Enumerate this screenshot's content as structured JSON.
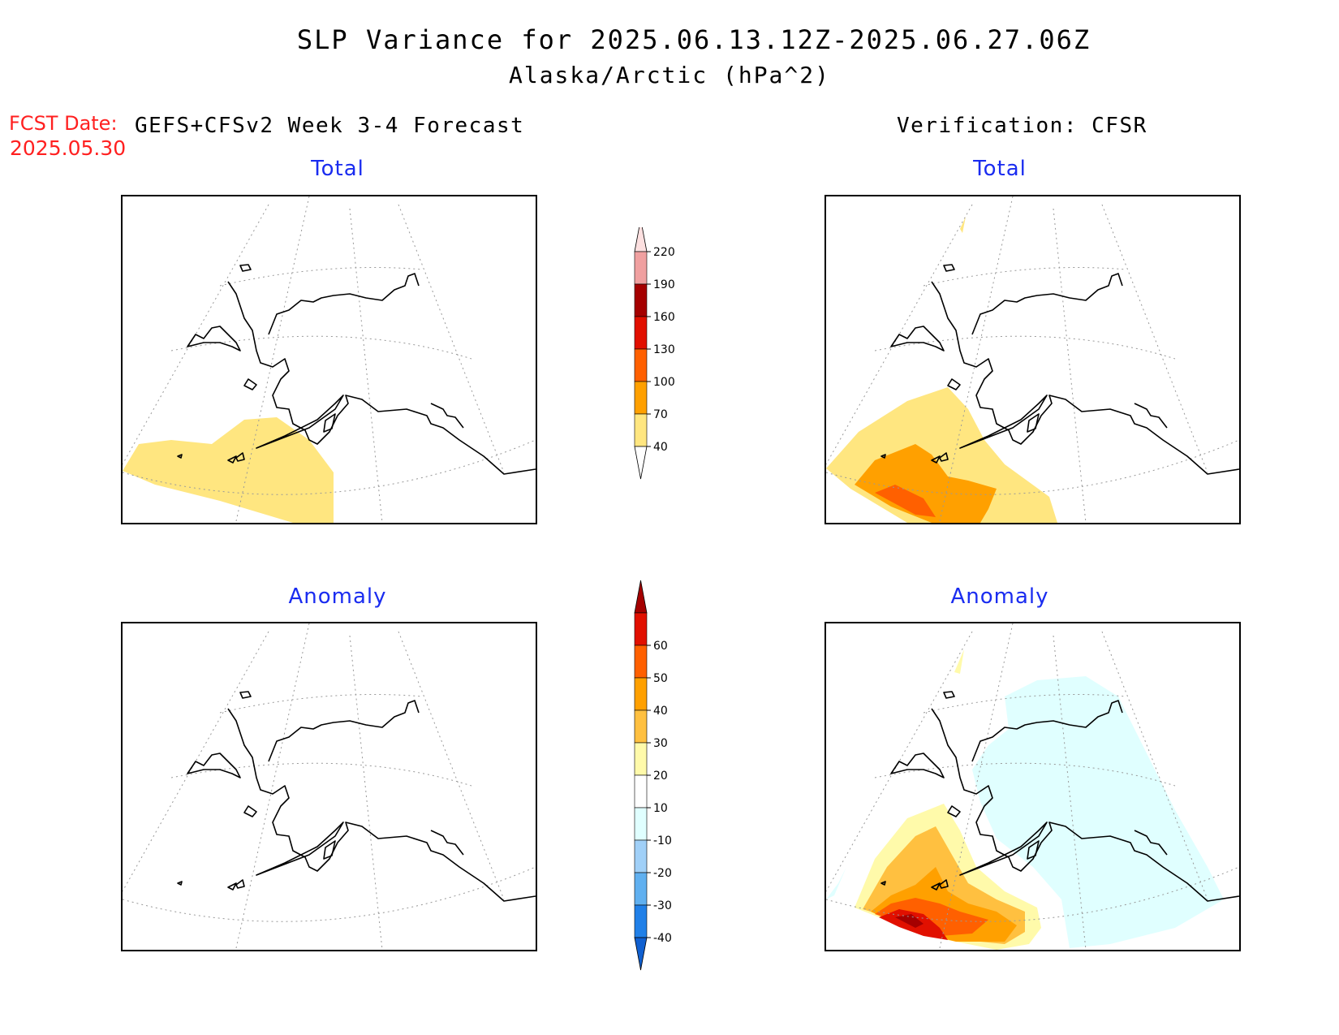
{
  "title": {
    "line1": "SLP Variance for 2025.06.13.12Z-2025.06.27.06Z",
    "line2": "Alaska/Arctic (hPa^2)"
  },
  "fcst": {
    "label": "FCST Date:",
    "date": "2025.05.30"
  },
  "columns": {
    "left_header": "GEFS+CFSv2 Week 3-4 Forecast",
    "right_header": "Verification: CFSR"
  },
  "panels": [
    {
      "position": "top-left",
      "title": "Total"
    },
    {
      "position": "top-right",
      "title": "Total"
    },
    {
      "position": "bottom-left",
      "title": "Anomaly"
    },
    {
      "position": "bottom-right",
      "title": "Anomaly"
    }
  ],
  "colorbars": {
    "total": {
      "labels": [
        "40",
        "70",
        "100",
        "130",
        "160",
        "190",
        "220"
      ],
      "colors": [
        "#ffffff",
        "#ffe680",
        "#ffa000",
        "#ff6000",
        "#e11000",
        "#a50000",
        "#f0a0a0",
        "#fde0e0"
      ]
    },
    "anomaly": {
      "labels": [
        "-40",
        "-30",
        "-20",
        "-10",
        "10",
        "20",
        "30",
        "40",
        "50",
        "60"
      ],
      "colors": [
        "#1060d0",
        "#2080e8",
        "#60b0f0",
        "#a0d0f8",
        "#e0ffff",
        "#ffffff",
        "#fffaaa",
        "#ffc040",
        "#ffa000",
        "#ff6000",
        "#e11000",
        "#a50000"
      ]
    }
  }
}
